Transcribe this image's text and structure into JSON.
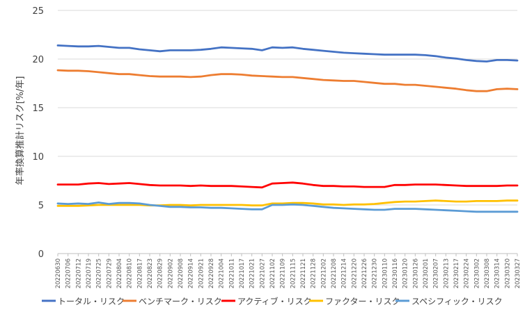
{
  "chart_data": {
    "type": "line",
    "title": "",
    "xlabel": "",
    "ylabel": "年率換算推計リスク[%/年]",
    "ylim": [
      0,
      25
    ],
    "yticks": [
      0,
      5,
      10,
      15,
      20,
      25
    ],
    "grid": true,
    "legend_position": "bottom",
    "categories": [
      "20220630",
      "20220706",
      "20220712",
      "20220719",
      "20220725",
      "20220729",
      "20220804",
      "20220810",
      "20220817",
      "20220823",
      "20220829",
      "20220902",
      "20220908",
      "20220914",
      "20220921",
      "20220928",
      "20221004",
      "20221011",
      "20221017",
      "20221021",
      "20221027",
      "20221102",
      "20221109",
      "20221115",
      "20221121",
      "20221128",
      "20221202",
      "20221208",
      "20221214",
      "20221220",
      "20221226",
      "20221230",
      "20230110",
      "20230116",
      "20230120",
      "20230126",
      "20230201",
      "20230207",
      "20230213",
      "20230217",
      "20230224",
      "20230302",
      "20230308",
      "20230314",
      "20230320",
      "20230327"
    ],
    "series": [
      {
        "name": "トータル・リスク",
        "color": "#4472C4",
        "values": [
          21.4,
          21.35,
          21.3,
          21.3,
          21.35,
          21.25,
          21.15,
          21.15,
          21.0,
          20.9,
          20.8,
          20.9,
          20.9,
          20.9,
          20.95,
          21.05,
          21.2,
          21.15,
          21.1,
          21.05,
          20.9,
          21.2,
          21.15,
          21.2,
          21.05,
          20.95,
          20.85,
          20.75,
          20.65,
          20.6,
          20.55,
          20.5,
          20.45,
          20.45,
          20.45,
          20.45,
          20.4,
          20.3,
          20.15,
          20.05,
          19.9,
          19.8,
          19.75,
          19.9,
          19.9,
          19.85
        ]
      },
      {
        "name": "ベンチマーク・リスク",
        "color": "#ED7D31",
        "values": [
          18.85,
          18.8,
          18.8,
          18.75,
          18.65,
          18.55,
          18.45,
          18.45,
          18.35,
          18.25,
          18.2,
          18.2,
          18.2,
          18.15,
          18.2,
          18.35,
          18.45,
          18.45,
          18.4,
          18.3,
          18.25,
          18.2,
          18.15,
          18.15,
          18.05,
          17.95,
          17.85,
          17.8,
          17.75,
          17.75,
          17.65,
          17.55,
          17.45,
          17.45,
          17.35,
          17.35,
          17.25,
          17.15,
          17.05,
          16.95,
          16.8,
          16.7,
          16.7,
          16.9,
          16.95,
          16.9
        ]
      },
      {
        "name": "アクティブ・リスク",
        "color": "#FF0000",
        "values": [
          7.1,
          7.1,
          7.1,
          7.2,
          7.25,
          7.15,
          7.2,
          7.25,
          7.15,
          7.05,
          7.0,
          7.0,
          7.0,
          6.95,
          7.0,
          6.95,
          6.95,
          6.95,
          6.9,
          6.85,
          6.8,
          7.2,
          7.25,
          7.3,
          7.2,
          7.05,
          6.95,
          6.95,
          6.9,
          6.9,
          6.85,
          6.85,
          6.85,
          7.05,
          7.05,
          7.1,
          7.1,
          7.1,
          7.05,
          7.0,
          6.95,
          6.95,
          6.95,
          6.95,
          7.0,
          7.0
        ]
      },
      {
        "name": "ファクター・リスク",
        "color": "#FFC000",
        "values": [
          4.9,
          4.9,
          4.9,
          4.95,
          5.0,
          5.0,
          5.0,
          5.0,
          5.0,
          4.95,
          4.95,
          5.0,
          5.0,
          4.95,
          5.0,
          5.0,
          5.0,
          5.0,
          5.0,
          4.95,
          4.95,
          5.15,
          5.15,
          5.2,
          5.2,
          5.15,
          5.05,
          5.05,
          5.0,
          5.05,
          5.05,
          5.1,
          5.2,
          5.3,
          5.35,
          5.35,
          5.4,
          5.45,
          5.4,
          5.35,
          5.35,
          5.4,
          5.4,
          5.4,
          5.45,
          5.45
        ]
      },
      {
        "name": "スペシフィック・リスク",
        "color": "#5B9BD5",
        "values": [
          5.15,
          5.1,
          5.15,
          5.1,
          5.25,
          5.1,
          5.2,
          5.2,
          5.15,
          5.0,
          4.9,
          4.8,
          4.8,
          4.75,
          4.75,
          4.7,
          4.7,
          4.65,
          4.6,
          4.55,
          4.55,
          5.0,
          5.0,
          5.05,
          5.0,
          4.9,
          4.8,
          4.7,
          4.65,
          4.6,
          4.55,
          4.5,
          4.5,
          4.6,
          4.6,
          4.6,
          4.55,
          4.5,
          4.45,
          4.4,
          4.35,
          4.3,
          4.3,
          4.3,
          4.3,
          4.3
        ]
      }
    ]
  }
}
